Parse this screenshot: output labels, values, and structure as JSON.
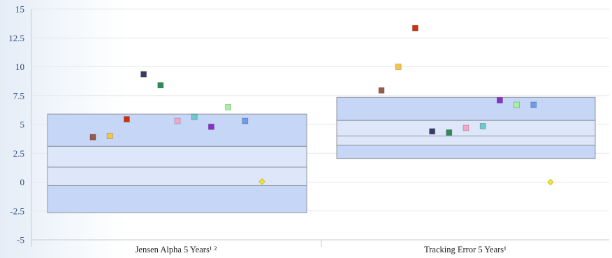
{
  "chart_data": {
    "type": "scatter",
    "title": "",
    "xlabel": "",
    "ylabel": "",
    "categories": [
      "Jensen Alpha 5 Years¹ ²",
      "Tracking Error 5 Years¹"
    ],
    "ylim": [
      -5,
      15
    ],
    "yticks": [
      "15",
      "12.5",
      "10",
      "7.5",
      "5",
      "2.5",
      "0",
      "-2.5",
      "-5"
    ],
    "ytick_values": [
      15,
      12.5,
      10,
      7.5,
      5,
      2.5,
      0,
      -2.5,
      -5
    ],
    "grid": true,
    "quartile_bands": [
      {
        "category": "Jensen Alpha 5 Years¹ ²",
        "max": 5.9,
        "q3": 3.1,
        "median": 1.3,
        "q1": -0.3,
        "min": -2.65
      },
      {
        "category": "Tracking Error 5 Years¹",
        "max": 7.35,
        "q3": 5.35,
        "median": 4.0,
        "q1": 3.2,
        "min": 2.05
      }
    ],
    "band_colors": {
      "outer": "#c5d6f6",
      "inner": "#dde7f9",
      "stroke": "#8f949c"
    },
    "series": [
      {
        "color": "#9b5b4a",
        "shape": "square",
        "values": [
          3.9,
          7.95
        ]
      },
      {
        "color": "#f6c642",
        "shape": "square",
        "values": [
          4.0,
          10.0
        ]
      },
      {
        "color": "#cc3311",
        "shape": "square",
        "values": [
          5.45,
          13.35
        ]
      },
      {
        "color": "#353d6a",
        "shape": "square",
        "values": [
          9.35,
          4.4
        ]
      },
      {
        "color": "#2f8a5a",
        "shape": "square",
        "values": [
          8.4,
          4.3
        ]
      },
      {
        "color": "#f7a8c8",
        "shape": "square",
        "values": [
          5.3,
          4.7
        ]
      },
      {
        "color": "#6cc9cc",
        "shape": "square",
        "values": [
          5.65,
          4.85
        ]
      },
      {
        "color": "#8b2fc9",
        "shape": "square",
        "values": [
          4.8,
          7.1
        ]
      },
      {
        "color": "#a7f0a0",
        "shape": "square",
        "values": [
          6.5,
          6.7
        ]
      },
      {
        "color": "#6c9de8",
        "shape": "square",
        "values": [
          5.3,
          6.7
        ]
      },
      {
        "color": "#f2e43a",
        "shape": "diamond",
        "values": [
          0.05,
          0.0
        ]
      }
    ]
  }
}
